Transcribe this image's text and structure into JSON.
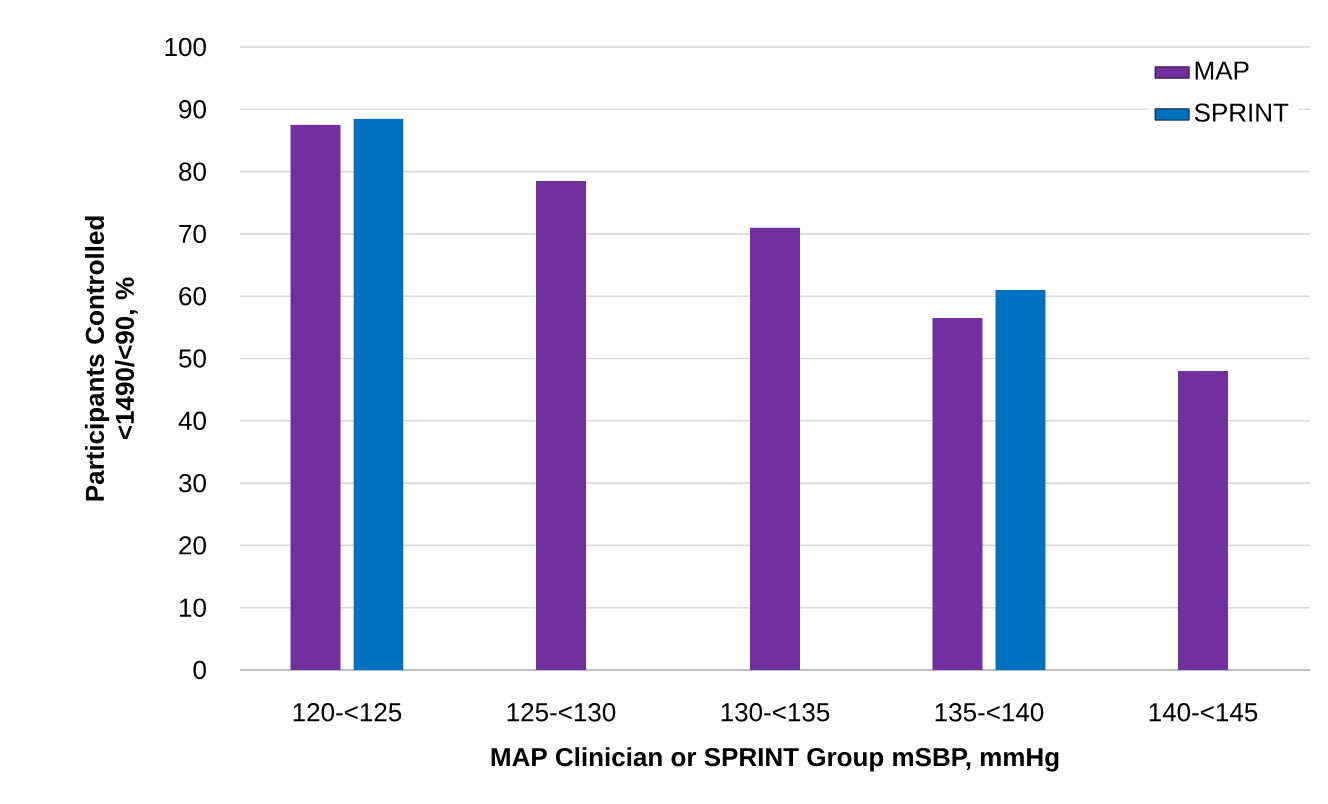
{
  "chart_data": {
    "type": "bar",
    "xlabel": "MAP Clinician or SPRINT Group mSBP, mmHg",
    "ylabel": "Participants Controlled <1490/<90, %",
    "categories": [
      "120-<125",
      "125-<130",
      "130-<135",
      "135-<140",
      "140-<145"
    ],
    "series": [
      {
        "name": "MAP",
        "color": "#7030a0",
        "values": [
          87.5,
          78.5,
          71,
          56.5,
          48
        ]
      },
      {
        "name": "SPRINT",
        "color": "#0070c0",
        "values": [
          88.5,
          null,
          null,
          61,
          null
        ]
      }
    ],
    "ylim": [
      0,
      100
    ],
    "yticks": [
      0,
      10,
      20,
      30,
      40,
      50,
      60,
      70,
      80,
      90,
      100
    ],
    "grid": "y",
    "legend": "top right"
  }
}
